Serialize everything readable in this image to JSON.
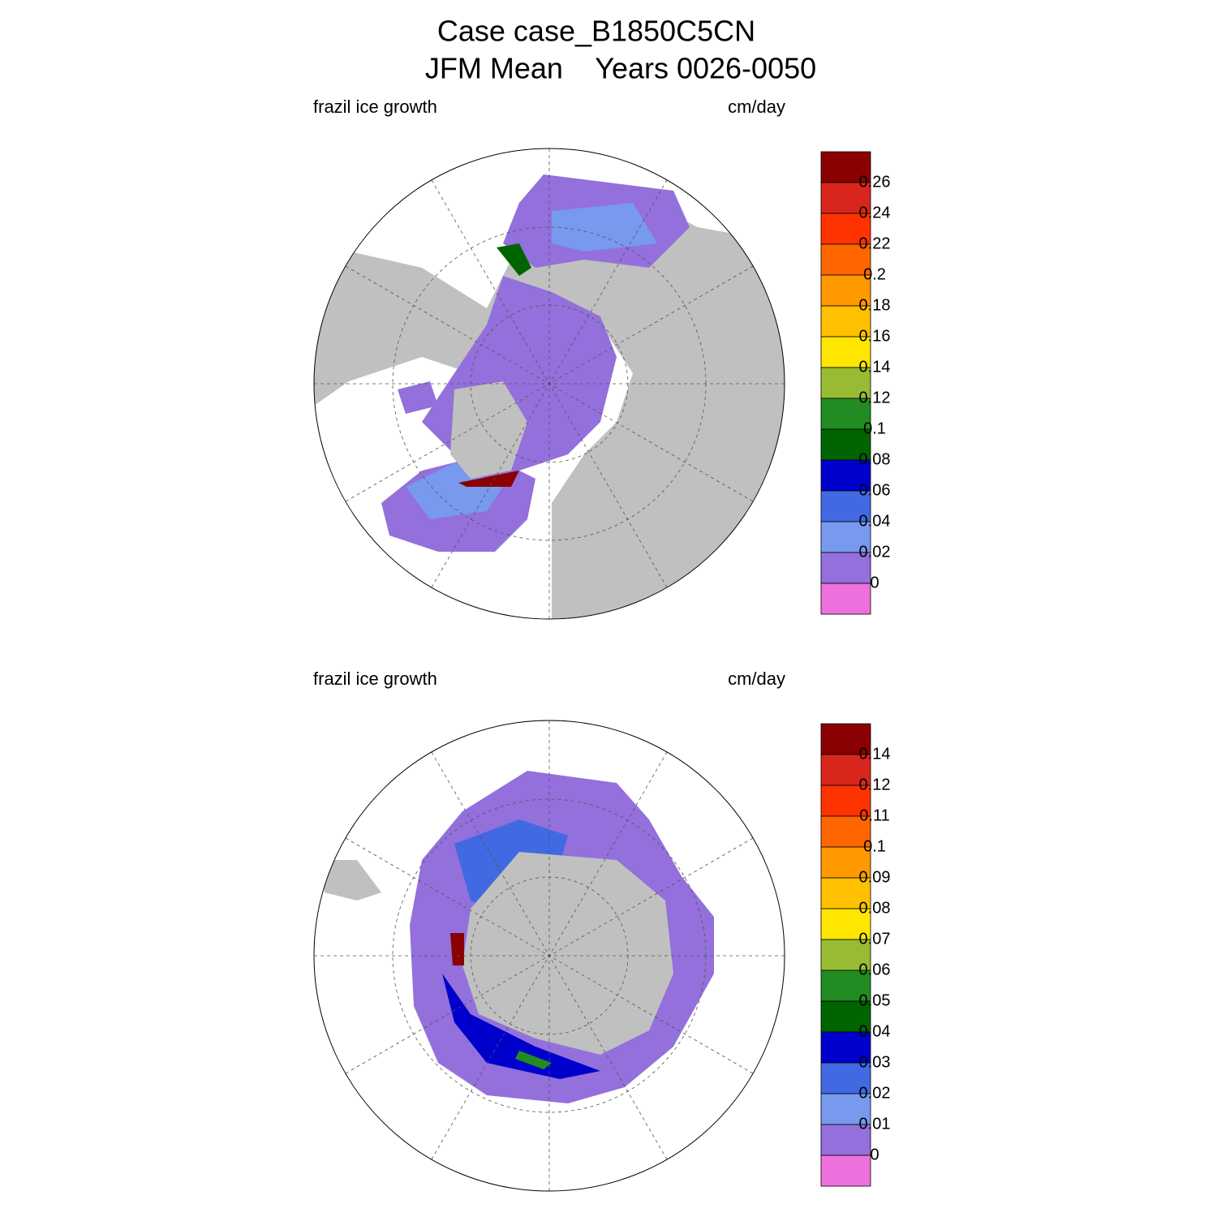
{
  "header": {
    "title_line1": "Case case_B1850C5CN",
    "title_line2": "JFM Mean    Years 0026-0050"
  },
  "panels": [
    {
      "left_label": "frazil ice growth",
      "right_label": "cm/day",
      "colorbar": {
        "labels": [
          0.26,
          0.24,
          0.22,
          0.2,
          0.18,
          0.16,
          0.14,
          0.12,
          0.1,
          0.08,
          0.06,
          0.04,
          0.02,
          0
        ],
        "colors": [
          "#8b0000",
          "#d9261c",
          "#ff3300",
          "#ff6600",
          "#ff9900",
          "#ffc000",
          "#ffe600",
          "#99bb33",
          "#228b22",
          "#006400",
          "#0000cd",
          "#4169e1",
          "#7799ee",
          "#9370db",
          "#ee70dd"
        ]
      }
    },
    {
      "left_label": "frazil ice growth",
      "right_label": "cm/day",
      "colorbar": {
        "labels": [
          0.14,
          0.12,
          0.11,
          0.1,
          0.09,
          0.08,
          0.07,
          0.06,
          0.05,
          0.04,
          0.03,
          0.02,
          0.01,
          0
        ],
        "colors": [
          "#8b0000",
          "#d9261c",
          "#ff3300",
          "#ff6600",
          "#ff9900",
          "#ffc000",
          "#ffe600",
          "#99bb33",
          "#228b22",
          "#006400",
          "#0000cd",
          "#4169e1",
          "#7799ee",
          "#9370db",
          "#ee70dd"
        ]
      }
    }
  ]
}
